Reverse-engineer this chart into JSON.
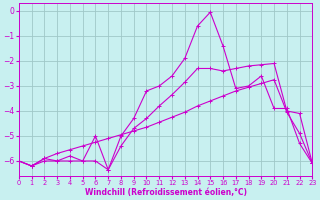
{
  "xlabel": "Windchill (Refroidissement éolien,°C)",
  "background_color": "#c8f0f0",
  "grid_color": "#a0c8c8",
  "line_color": "#cc00cc",
  "xlim": [
    0,
    23
  ],
  "ylim": [
    -6.6,
    0.3
  ],
  "yticks": [
    0,
    -1,
    -2,
    -3,
    -4,
    -5,
    -6
  ],
  "xticks": [
    0,
    1,
    2,
    3,
    4,
    5,
    6,
    7,
    8,
    9,
    10,
    11,
    12,
    13,
    14,
    15,
    16,
    17,
    18,
    19,
    20,
    21,
    22,
    23
  ],
  "series1_x": [
    0,
    1,
    2,
    3,
    4,
    5,
    6,
    7,
    8,
    9,
    10,
    11,
    12,
    13,
    14,
    15,
    16,
    17,
    18,
    19,
    20,
    21,
    22,
    23
  ],
  "series1_y": [
    -6.0,
    -6.2,
    -6.0,
    -6.0,
    -6.0,
    -6.0,
    -6.0,
    -6.35,
    -5.4,
    -4.7,
    -4.3,
    -3.8,
    -3.35,
    -2.85,
    -2.3,
    -2.3,
    -2.4,
    -2.3,
    -2.2,
    -2.15,
    -2.1,
    -4.0,
    -4.1,
    -6.1
  ],
  "series2_x": [
    0,
    1,
    2,
    3,
    4,
    5,
    6,
    7,
    8,
    9,
    10,
    11,
    12,
    13,
    14,
    15,
    16,
    17,
    18,
    19,
    20,
    21,
    22,
    23
  ],
  "series2_y": [
    -6.0,
    -6.2,
    -5.9,
    -6.0,
    -5.8,
    -6.0,
    -5.0,
    -6.35,
    -5.0,
    -4.3,
    -3.2,
    -3.0,
    -2.6,
    -1.9,
    -0.6,
    -0.05,
    -1.4,
    -3.1,
    -3.0,
    -2.6,
    -3.9,
    -3.9,
    -5.3,
    -6.1
  ],
  "series3_x": [
    0,
    1,
    2,
    3,
    4,
    5,
    6,
    7,
    8,
    9,
    10,
    11,
    12,
    13,
    14,
    15,
    16,
    17,
    18,
    19,
    20,
    21,
    22,
    23
  ],
  "series3_y": [
    -6.0,
    -6.2,
    -5.9,
    -5.7,
    -5.55,
    -5.4,
    -5.25,
    -5.1,
    -4.95,
    -4.8,
    -4.65,
    -4.45,
    -4.25,
    -4.05,
    -3.8,
    -3.6,
    -3.4,
    -3.2,
    -3.05,
    -2.9,
    -2.75,
    -4.05,
    -4.9,
    -6.1
  ],
  "marker": "+",
  "marker_size": 3,
  "linewidth": 0.8
}
